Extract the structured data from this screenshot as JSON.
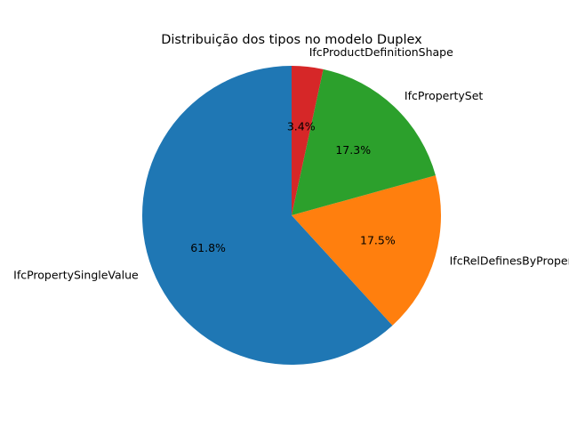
{
  "chart_data": {
    "type": "pie",
    "title": "Distribuição dos tipos no modelo Duplex",
    "slices": [
      {
        "label": "IfcPropertySingleValue",
        "value": 61.8,
        "pct_label": "61.8%",
        "color": "#1f77b4"
      },
      {
        "label": "IfcRelDefinesByProperties",
        "value": 17.5,
        "pct_label": "17.5%",
        "color": "#ff7f0e"
      },
      {
        "label": "IfcPropertySet",
        "value": 17.3,
        "pct_label": "17.3%",
        "color": "#2ca02c"
      },
      {
        "label": "IfcProductDefinitionShape",
        "value": 3.4,
        "pct_label": "3.4%",
        "color": "#d62728"
      }
    ],
    "start_angle_deg": 90,
    "direction": "counterclockwise",
    "legend": "none"
  }
}
